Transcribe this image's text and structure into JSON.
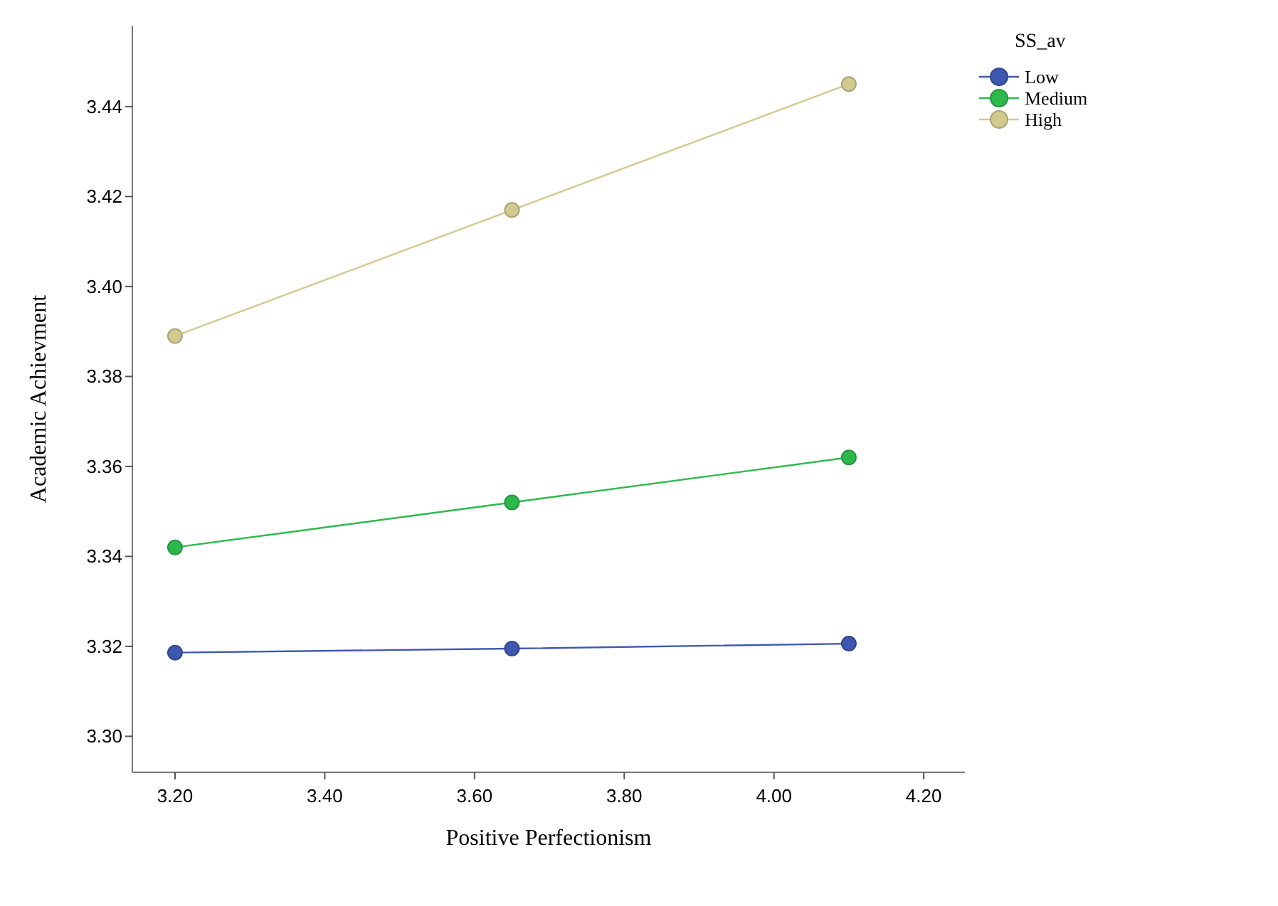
{
  "chart_data": {
    "type": "line",
    "xlabel": "Positive Perfectionism",
    "ylabel": "Academic Achievment",
    "legend_title": "SS_av",
    "x": [
      3.2,
      3.65,
      4.1
    ],
    "xlim": [
      3.143,
      4.255
    ],
    "xticks": [
      {
        "value": 3.2,
        "label": "3.20"
      },
      {
        "value": 3.4,
        "label": "3.40"
      },
      {
        "value": 3.6,
        "label": "3.60"
      },
      {
        "value": 3.8,
        "label": "3.80"
      },
      {
        "value": 4.0,
        "label": "4.00"
      },
      {
        "value": 4.2,
        "label": "4.20"
      }
    ],
    "ylim": [
      3.292,
      3.458
    ],
    "yticks": [
      {
        "value": 3.3,
        "label": "3.30"
      },
      {
        "value": 3.32,
        "label": "3.32"
      },
      {
        "value": 3.34,
        "label": "3.34"
      },
      {
        "value": 3.36,
        "label": "3.36"
      },
      {
        "value": 3.38,
        "label": "3.38"
      },
      {
        "value": 3.4,
        "label": "3.40"
      },
      {
        "value": 3.42,
        "label": "3.42"
      },
      {
        "value": 3.44,
        "label": "3.44"
      }
    ],
    "marker": "circle",
    "legend": "top right",
    "series": [
      {
        "name": "Low",
        "color": "#3e58b0",
        "values": [
          3.3186,
          3.3195,
          3.3206
        ]
      },
      {
        "name": "Medium",
        "color": "#2db84c",
        "values": [
          3.342,
          3.352,
          3.362
        ]
      },
      {
        "name": "High",
        "color": "#d2c98f",
        "values": [
          3.389,
          3.417,
          3.445
        ]
      }
    ]
  }
}
